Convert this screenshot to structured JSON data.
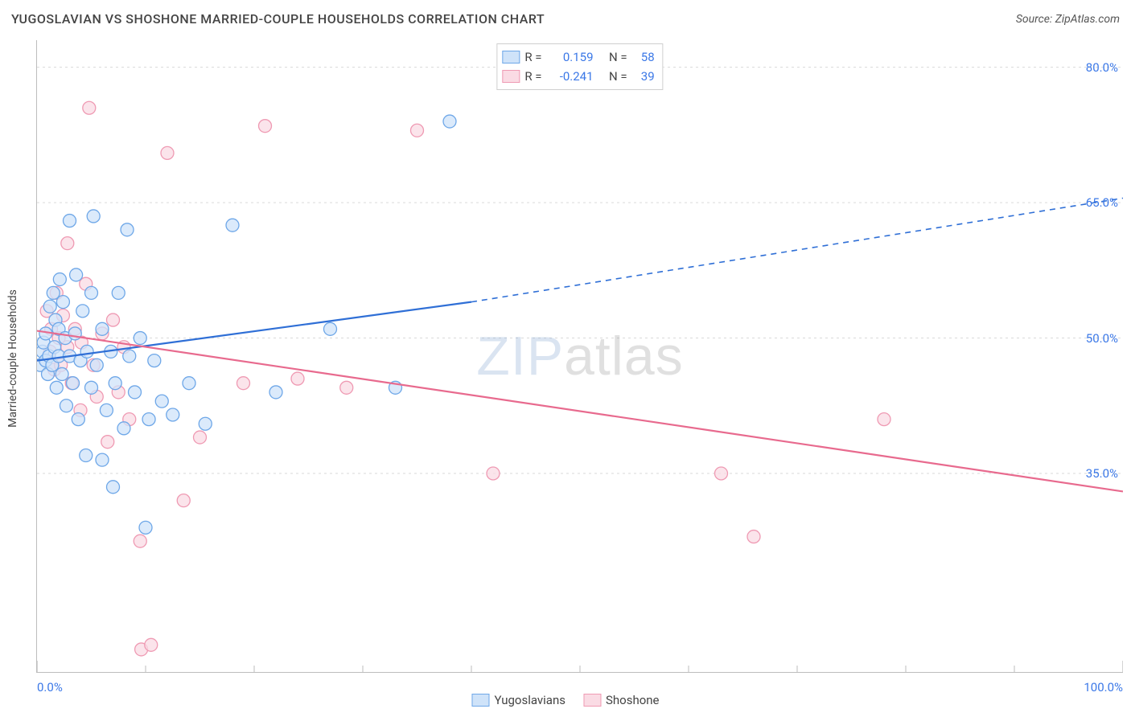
{
  "title": "YUGOSLAVIAN VS SHOSHONE MARRIED-COUPLE HOUSEHOLDS CORRELATION CHART",
  "source": "Source: ZipAtlas.com",
  "ylabel": "Married-couple Households",
  "watermark_a": "ZIP",
  "watermark_b": "atlas",
  "chart": {
    "type": "scatter-correlation",
    "background_color": "#ffffff",
    "axis_color": "#bdbdbd",
    "grid_color": "#d9d9d9",
    "tick_color": "#bdbdbd",
    "xlim": [
      0,
      100
    ],
    "ylim": [
      13,
      83
    ],
    "x_ticks_major": [
      0,
      100
    ],
    "x_tick_labels": [
      "0.0%",
      "100.0%"
    ],
    "x_ticks_minor": [
      10,
      20,
      30,
      40,
      50,
      60,
      70,
      80,
      90
    ],
    "y_ticks": [
      35,
      50,
      65,
      80
    ],
    "y_tick_labels": [
      "35.0%",
      "50.0%",
      "65.0%",
      "80.0%"
    ],
    "point_radius": 8,
    "point_stroke_width": 1.3,
    "trend_line_width": 2.2,
    "title_fontsize": 16,
    "label_fontsize": 14,
    "tick_fontsize": 15,
    "series": [
      {
        "key": "yugoslavians",
        "label": "Yugoslavians",
        "fill": "#cfe3f9",
        "stroke": "#6ea7e8",
        "line_color": "#2f6fd6",
        "R_label": "R =",
        "R": "0.159",
        "N_label": "N =",
        "N": "58",
        "trend": {
          "x1": 0,
          "y1": 47.5,
          "x2": 40,
          "y2": 54.0,
          "ext_x2": 100,
          "ext_y2": 65.5
        },
        "points": [
          [
            0.3,
            47
          ],
          [
            0.5,
            48.5
          ],
          [
            0.6,
            49.5
          ],
          [
            0.8,
            47.5
          ],
          [
            0.8,
            50.5
          ],
          [
            1,
            46
          ],
          [
            1.1,
            48
          ],
          [
            1.2,
            53.5
          ],
          [
            1.4,
            47
          ],
          [
            1.5,
            55
          ],
          [
            1.6,
            49
          ],
          [
            1.7,
            52
          ],
          [
            1.8,
            44.5
          ],
          [
            2,
            48
          ],
          [
            2,
            51
          ],
          [
            2.1,
            56.5
          ],
          [
            2.3,
            46
          ],
          [
            2.4,
            54
          ],
          [
            2.6,
            50
          ],
          [
            2.7,
            42.5
          ],
          [
            3,
            48
          ],
          [
            3,
            63
          ],
          [
            3.3,
            45
          ],
          [
            3.5,
            50.5
          ],
          [
            3.6,
            57
          ],
          [
            3.8,
            41
          ],
          [
            4,
            47.5
          ],
          [
            4.2,
            53
          ],
          [
            4.5,
            37
          ],
          [
            4.6,
            48.5
          ],
          [
            5,
            55
          ],
          [
            5,
            44.5
          ],
          [
            5.2,
            63.5
          ],
          [
            5.5,
            47
          ],
          [
            6,
            36.5
          ],
          [
            6,
            51
          ],
          [
            6.4,
            42
          ],
          [
            6.8,
            48.5
          ],
          [
            7,
            33.5
          ],
          [
            7.2,
            45
          ],
          [
            7.5,
            55
          ],
          [
            8,
            40
          ],
          [
            8.3,
            62
          ],
          [
            8.5,
            48
          ],
          [
            9,
            44
          ],
          [
            9.5,
            50
          ],
          [
            10,
            29
          ],
          [
            10.3,
            41
          ],
          [
            10.8,
            47.5
          ],
          [
            11.5,
            43
          ],
          [
            12.5,
            41.5
          ],
          [
            14,
            45
          ],
          [
            15.5,
            40.5
          ],
          [
            18,
            62.5
          ],
          [
            22,
            44
          ],
          [
            27,
            51
          ],
          [
            33,
            44.5
          ],
          [
            38,
            74
          ]
        ]
      },
      {
        "key": "shoshone",
        "label": "Shoshone",
        "fill": "#fadbe4",
        "stroke": "#ef9ab3",
        "line_color": "#e86a8e",
        "R_label": "R =",
        "R": "-0.241",
        "N_label": "N =",
        "N": "39",
        "trend": {
          "x1": 0,
          "y1": 50.8,
          "x2": 100,
          "y2": 33.0,
          "ext_x2": 100,
          "ext_y2": 33.0
        },
        "points": [
          [
            0.9,
            53
          ],
          [
            1.2,
            48.5
          ],
          [
            1.3,
            51
          ],
          [
            1.6,
            46.5
          ],
          [
            1.8,
            55
          ],
          [
            2,
            50
          ],
          [
            2.2,
            47
          ],
          [
            2.4,
            52.5
          ],
          [
            2.8,
            49
          ],
          [
            2.8,
            60.5
          ],
          [
            3.2,
            45
          ],
          [
            3.5,
            51
          ],
          [
            4,
            42
          ],
          [
            4.1,
            49.5
          ],
          [
            4.5,
            56
          ],
          [
            4.8,
            75.5
          ],
          [
            5.2,
            47
          ],
          [
            5.5,
            43.5
          ],
          [
            6,
            50.5
          ],
          [
            6.5,
            38.5
          ],
          [
            7,
            52
          ],
          [
            7.5,
            44
          ],
          [
            8,
            49
          ],
          [
            8.5,
            41
          ],
          [
            9.5,
            27.5
          ],
          [
            9.6,
            15.5
          ],
          [
            10.5,
            16
          ],
          [
            12,
            70.5
          ],
          [
            13.5,
            32
          ],
          [
            15,
            39
          ],
          [
            19,
            45
          ],
          [
            21,
            73.5
          ],
          [
            24,
            45.5
          ],
          [
            28.5,
            44.5
          ],
          [
            35,
            73
          ],
          [
            42,
            35
          ],
          [
            63,
            35
          ],
          [
            66,
            28
          ],
          [
            78,
            41
          ]
        ]
      }
    ]
  }
}
